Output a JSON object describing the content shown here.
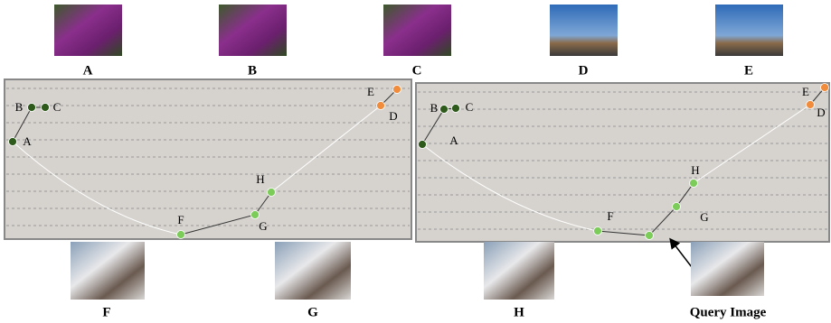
{
  "top_images": [
    "A",
    "B",
    "C",
    "D",
    "E"
  ],
  "bottom_images": [
    "F",
    "G",
    "H",
    "Query Image"
  ],
  "panels": [
    {
      "nodes": [
        "A",
        "B",
        "C",
        "D",
        "E",
        "F",
        "G",
        "H"
      ]
    },
    {
      "nodes": [
        "A",
        "B",
        "C",
        "D",
        "E",
        "F",
        "G",
        "H"
      ]
    }
  ]
}
